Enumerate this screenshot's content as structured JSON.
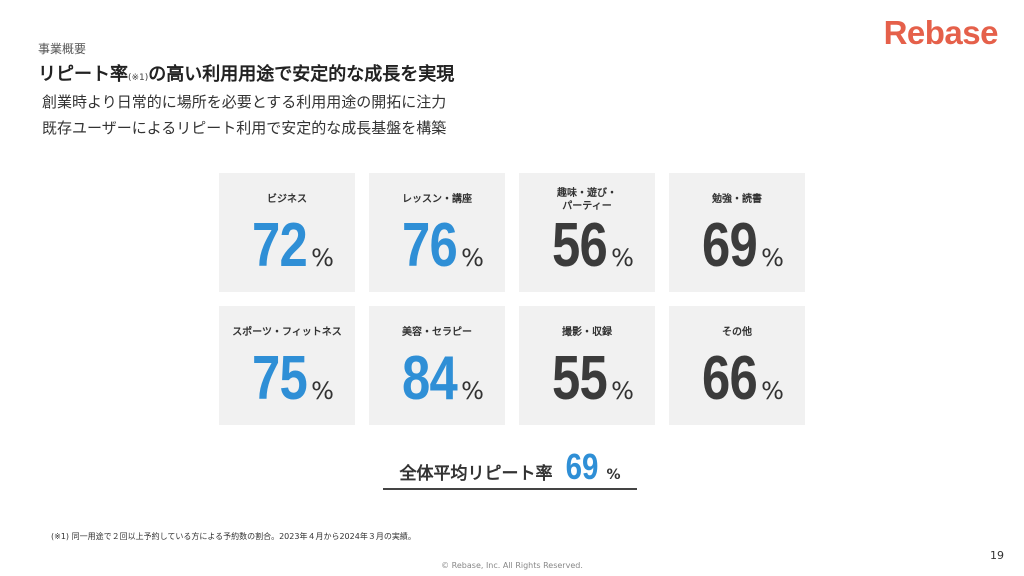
{
  "header": {
    "section": "事業概要",
    "title_main": "リピート率",
    "title_note": "(※1)",
    "title_rest": "の高い利用用途で安定的な成長を実現",
    "sub1": "創業時より日常的に場所を必要とする利用用途の開拓に注力",
    "sub2": "既存ユーザーによるリピート利用で安定的な成長基盤を構築"
  },
  "logo": "Rebase",
  "cards": [
    {
      "label": "ビジネス",
      "value": "72",
      "unit": "%",
      "color": "#2f8fd6"
    },
    {
      "label": "レッスン・講座",
      "value": "76",
      "unit": "%",
      "color": "#2f8fd6"
    },
    {
      "label": "趣味・遊び・\nパーティー",
      "value": "56",
      "unit": "%",
      "color": "#3b3b3b"
    },
    {
      "label": "勉強・読書",
      "value": "69",
      "unit": "%",
      "color": "#3b3b3b"
    },
    {
      "label": "スポーツ・フィットネス",
      "value": "75",
      "unit": "%",
      "color": "#2f8fd6"
    },
    {
      "label": "美容・セラピー",
      "value": "84",
      "unit": "%",
      "color": "#2f8fd6"
    },
    {
      "label": "撮影・収録",
      "value": "55",
      "unit": "%",
      "color": "#3b3b3b"
    },
    {
      "label": "その他",
      "value": "66",
      "unit": "%",
      "color": "#3b3b3b"
    }
  ],
  "average": {
    "label": "全体平均リピート率",
    "value": "69",
    "unit": "%"
  },
  "footnote": "(※1) 同一用途で２回以上予約している方による予約数の割合。2023年４月から2024年３月の実績。",
  "page_number": "19",
  "copyright": "© Rebase, Inc. All Rights Reserved."
}
